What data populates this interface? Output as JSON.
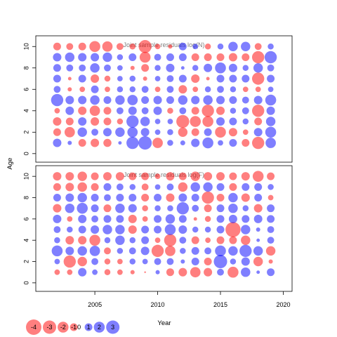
{
  "chart_data": {
    "type": "scatter",
    "subtype": "bubble-residuals",
    "xlabel": "Year",
    "ylabel": "Age",
    "xlim": [
      2000.3,
      2020.7
    ],
    "ylim": [
      -0.8,
      11
    ],
    "xticks": [
      2005,
      2010,
      2015,
      2020
    ],
    "yticks": [
      0,
      2,
      4,
      6,
      8,
      10
    ],
    "colors": {
      "positive": "#0000ff",
      "negative": "#ff0000",
      "frame": "#000000",
      "title": "#808080"
    },
    "encoding": "circle area proportional to |residual|; blue = positive, red = negative; alpha 0.5",
    "years": [
      2002,
      2003,
      2004,
      2005,
      2006,
      2007,
      2008,
      2009,
      2010,
      2011,
      2012,
      2013,
      2014,
      2015,
      2016,
      2017,
      2018,
      2019
    ],
    "ages": [
      1,
      2,
      3,
      4,
      5,
      6,
      7,
      8,
      9,
      10
    ],
    "panels": [
      {
        "title": "Joint sample residuals log(N)",
        "residuals": [
          [
            1.2,
            0.3,
            -1.0,
            -1.2,
            -1.1,
            0.2,
            2.5,
            3.0,
            -1.8,
            0.6,
            0.4,
            1.2,
            2.0,
            0.5,
            1.0,
            -1.0,
            -2.5,
            1.8
          ],
          [
            -1.0,
            -1.8,
            1.5,
            0.8,
            1.2,
            1.5,
            1.8,
            1.2,
            0.5,
            0.6,
            -1.5,
            -1.0,
            1.0,
            -2.0,
            -1.2,
            -0.5,
            1.2,
            2.0
          ],
          [
            -1.2,
            -1.0,
            1.2,
            -1.2,
            -1.0,
            -0.6,
            2.5,
            1.5,
            0.5,
            0.5,
            -2.8,
            -2.0,
            -2.0,
            1.2,
            1.0,
            0.6,
            -1.0,
            1.5
          ],
          [
            -0.5,
            1.2,
            -1.2,
            -1.8,
            -1.0,
            0.8,
            1.2,
            0.8,
            1.2,
            -0.6,
            0.8,
            -1.0,
            -2.5,
            -1.2,
            0.6,
            0.8,
            -2.5,
            1.2
          ],
          [
            2.5,
            1.2,
            1.2,
            1.5,
            1.0,
            1.5,
            1.8,
            1.0,
            1.2,
            1.0,
            1.5,
            1.2,
            1.5,
            1.2,
            1.0,
            0.8,
            1.2,
            2.0
          ],
          [
            0.8,
            -0.3,
            -0.5,
            1.0,
            -0.5,
            0.6,
            0.6,
            0.8,
            -0.5,
            0.8,
            -1.2,
            -0.5,
            0.6,
            0.8,
            0.6,
            -0.5,
            -0.5,
            0.5
          ],
          [
            1.0,
            -0.2,
            1.0,
            -1.2,
            -0.6,
            0.5,
            0.6,
            -0.3,
            0.5,
            0.8,
            1.0,
            -1.2,
            -0.2,
            1.0,
            1.0,
            1.0,
            -2.5,
            1.0
          ],
          [
            1.0,
            0.8,
            0.8,
            1.5,
            0.8,
            0.5,
            -0.3,
            -1.0,
            0.6,
            1.2,
            0.2,
            0.6,
            1.2,
            2.0,
            1.2,
            0.6,
            1.5,
            0.8
          ],
          [
            1.2,
            1.5,
            1.2,
            1.2,
            1.5,
            0.6,
            1.0,
            -2.0,
            0.8,
            1.0,
            1.0,
            -1.0,
            -1.0,
            -1.0,
            -1.2,
            -1.0,
            -2.5,
            2.5
          ],
          [
            -1.0,
            -0.8,
            -1.0,
            -2.0,
            -1.8,
            -0.8,
            -0.6,
            -2.8,
            -0.5,
            -0.3,
            1.0,
            0.5,
            -0.6,
            0.6,
            1.5,
            1.5,
            -0.8,
            0.6
          ]
        ]
      },
      {
        "title": "Joint sample residuals log(F)",
        "residuals": [
          [
            -0.5,
            -0.5,
            1.2,
            0.5,
            -0.6,
            -0.5,
            -0.3,
            -0.05,
            0.3,
            -1.0,
            -1.2,
            -1.8,
            -1.2,
            0.8,
            -2.0,
            1.5,
            0.2,
            1.0
          ],
          [
            0.5,
            -2.5,
            -1.5,
            0.8,
            -0.6,
            -0.5,
            0.6,
            0.5,
            0.8,
            0.8,
            0.3,
            1.0,
            -1.0,
            3.0,
            0.6,
            1.2,
            -1.5,
            -0.3
          ],
          [
            2.0,
            1.2,
            1.5,
            1.8,
            -0.8,
            0.6,
            0.8,
            1.2,
            -2.5,
            -1.8,
            0.6,
            1.0,
            0.8,
            2.0,
            1.5,
            2.5,
            1.5,
            -1.5
          ],
          [
            0.6,
            -1.2,
            -1.2,
            -2.0,
            0.6,
            1.5,
            0.6,
            1.0,
            -0.5,
            -2.5,
            0.8,
            -1.0,
            -0.5,
            -1.0,
            -1.0,
            -1.5,
            0.2,
            0.8
          ],
          [
            0.8,
            0.6,
            1.0,
            1.2,
            1.5,
            1.5,
            -1.2,
            1.0,
            1.0,
            2.0,
            1.2,
            0.6,
            0.6,
            1.0,
            -3.8,
            1.5,
            0.3,
            0.8
          ],
          [
            1.2,
            -0.5,
            1.2,
            0.8,
            1.0,
            1.0,
            -1.2,
            -0.5,
            1.0,
            1.5,
            1.0,
            -0.2,
            -0.6,
            1.0,
            1.2,
            1.0,
            1.2,
            1.0
          ],
          [
            -1.2,
            1.5,
            2.0,
            1.0,
            -1.0,
            1.5,
            1.2,
            -0.6,
            0.6,
            0.6,
            2.5,
            0.8,
            -1.0,
            1.0,
            1.5,
            0.6,
            -1.2,
            1.0
          ],
          [
            1.0,
            1.2,
            1.5,
            1.0,
            0.8,
            1.0,
            1.0,
            -1.0,
            1.0,
            -1.2,
            1.2,
            1.0,
            -2.5,
            -1.0,
            1.5,
            -1.2,
            1.0,
            -0.5
          ],
          [
            -1.0,
            -1.2,
            -1.5,
            -1.0,
            1.0,
            0.8,
            0.6,
            -0.8,
            0.5,
            0.8,
            -1.5,
            1.5,
            1.5,
            1.0,
            -1.0,
            1.0,
            1.0,
            0.6
          ],
          [
            -1.2,
            -1.2,
            -1.5,
            -1.0,
            -1.2,
            -1.2,
            -1.0,
            -1.0,
            -0.5,
            -1.2,
            -1.0,
            -1.5,
            -1.2,
            -1.2,
            -1.0,
            -1.2,
            -2.0,
            -1.0
          ]
        ]
      }
    ],
    "legend": {
      "position": "bottom-left",
      "values": [
        -4,
        -3,
        -2,
        -1,
        0,
        1,
        2,
        3
      ]
    }
  }
}
